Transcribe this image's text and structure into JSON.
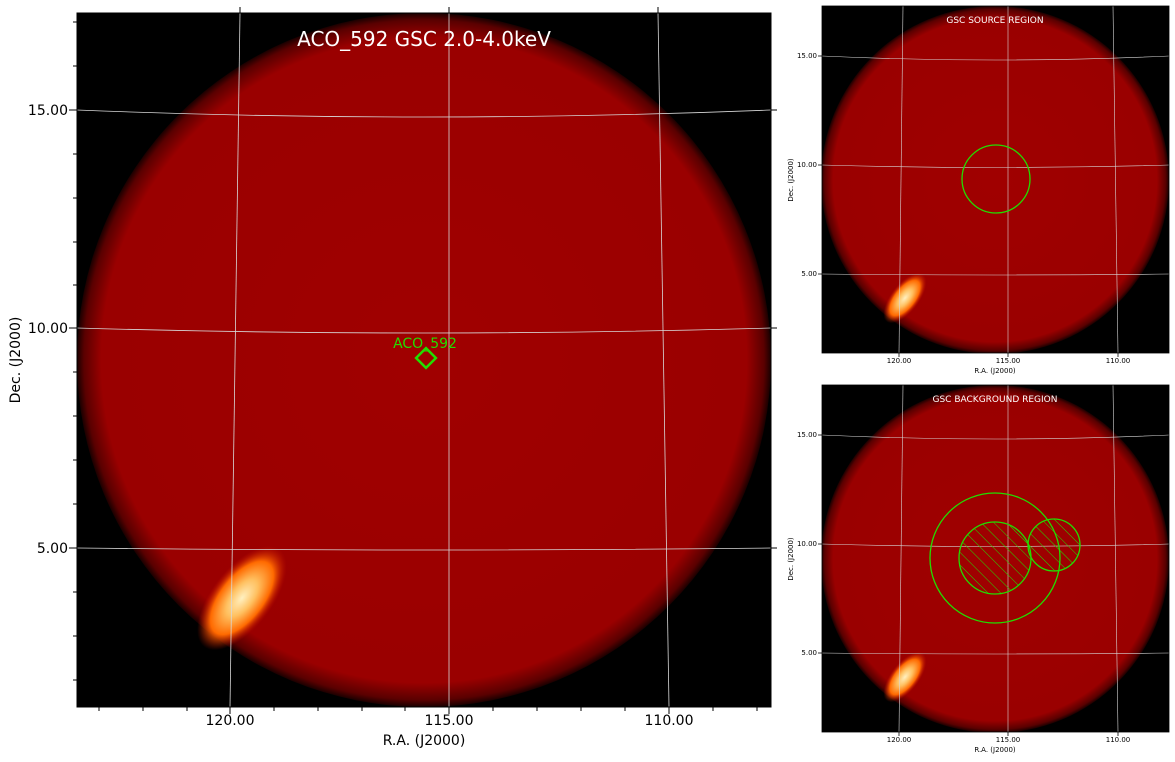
{
  "main_panel": {
    "title": "ACO_592 GSC 2.0-4.0keV",
    "xlabel": "R.A. (J2000)",
    "ylabel": "Dec. (J2000)",
    "x_ticks": [
      "120.00",
      "115.00",
      "110.00"
    ],
    "y_ticks": [
      "15.00",
      "10.00",
      "5.00"
    ],
    "marker_label": "ACO_592",
    "marker_shape": "diamond"
  },
  "source_panel": {
    "title": "GSC SOURCE REGION",
    "xlabel": "R.A. (J2000)",
    "ylabel": "Dec. (J2000)",
    "x_ticks": [
      "120.00",
      "115.00",
      "110.00"
    ],
    "y_ticks": [
      "15.00",
      "10.00",
      "5.00"
    ]
  },
  "background_panel": {
    "title": "GSC BACKGROUND REGION",
    "xlabel": "R.A. (J2000)",
    "ylabel": "Dec. (J2000)",
    "x_ticks": [
      "120.00",
      "115.00",
      "110.00"
    ],
    "y_ticks": [
      "15.00",
      "10.00",
      "5.00"
    ]
  },
  "colors": {
    "field": "#a00000",
    "sky_background": "#000000",
    "region": "#22dd00",
    "grid": "#d8d8d8",
    "bright_source": "#ffd080"
  }
}
